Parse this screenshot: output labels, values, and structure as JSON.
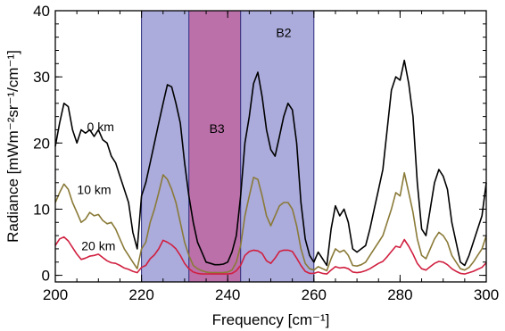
{
  "chart_data": {
    "type": "line",
    "title": "",
    "xlabel": "Frequency [cm⁻¹]",
    "ylabel": "Radiance [mWm⁻²sr⁻¹/cm⁻¹]",
    "xlim": [
      200,
      300
    ],
    "ylim": [
      -1,
      40
    ],
    "x_ticks": [
      "200",
      "220",
      "240",
      "260",
      "280",
      "300"
    ],
    "y_ticks": [
      "0",
      "10",
      "20",
      "30",
      "40"
    ],
    "grid": false,
    "legend": "none",
    "bands": [
      {
        "name": "B2",
        "x0": 220,
        "x1": 260,
        "color": "#8f8fd0"
      },
      {
        "name": "B3",
        "x0": 231,
        "x1": 243,
        "color": "#c05c98"
      }
    ],
    "series": [
      {
        "name": "0 km",
        "color": "#000000",
        "x": [
          200,
          201,
          202,
          203,
          204,
          205,
          206,
          207,
          208,
          209,
          210,
          211,
          212,
          213,
          214,
          215,
          216,
          217,
          218,
          219,
          220,
          221,
          222,
          223,
          224,
          225,
          226,
          227,
          228,
          229,
          230,
          231,
          232,
          233,
          234,
          235,
          236,
          237,
          238,
          239,
          240,
          241,
          242,
          243,
          244,
          245,
          246,
          247,
          248,
          249,
          250,
          251,
          252,
          253,
          254,
          255,
          256,
          257,
          258,
          259,
          260,
          261,
          262,
          263,
          264,
          265,
          266,
          267,
          268,
          269,
          270,
          271,
          272,
          273,
          274,
          275,
          276,
          277,
          278,
          279,
          280,
          281,
          282,
          283,
          284,
          285,
          286,
          287,
          288,
          289,
          290,
          291,
          292,
          293,
          294,
          295,
          296,
          297,
          298,
          299,
          300
        ],
        "values": [
          19.5,
          23,
          26,
          25.5,
          22,
          20,
          22,
          21.5,
          22,
          21,
          22,
          20.5,
          20,
          18,
          17,
          15,
          13,
          11,
          6.5,
          4,
          12,
          14,
          17,
          20,
          23,
          26,
          28.8,
          28.5,
          26,
          23,
          17,
          12,
          8,
          5,
          3.5,
          2,
          1.8,
          1.6,
          1.6,
          1.7,
          2,
          3.5,
          6,
          12,
          20,
          24,
          29,
          30.7,
          27,
          22,
          19,
          18,
          21,
          24,
          26,
          25,
          20,
          11,
          5.5,
          3,
          2,
          3.5,
          2.5,
          1.5,
          7,
          10.5,
          9,
          10,
          8,
          4,
          3.5,
          4,
          4.5,
          7,
          10,
          13,
          16,
          22,
          28,
          30,
          29.5,
          32.5,
          29,
          24,
          14,
          7,
          6,
          10,
          14,
          16,
          15,
          13,
          8,
          5,
          2,
          1.5,
          3,
          5,
          7,
          9,
          14
        ]
      },
      {
        "name": "10 km",
        "color": "#8a7a38",
        "x": [
          200,
          201,
          202,
          203,
          204,
          205,
          206,
          207,
          208,
          209,
          210,
          211,
          212,
          213,
          214,
          215,
          216,
          217,
          218,
          219,
          220,
          221,
          222,
          223,
          224,
          225,
          226,
          227,
          228,
          229,
          230,
          231,
          232,
          233,
          234,
          235,
          236,
          237,
          238,
          239,
          240,
          241,
          242,
          243,
          244,
          245,
          246,
          247,
          248,
          249,
          250,
          251,
          252,
          253,
          254,
          255,
          256,
          257,
          258,
          259,
          260,
          261,
          262,
          263,
          264,
          265,
          266,
          267,
          268,
          269,
          270,
          271,
          272,
          273,
          274,
          275,
          276,
          277,
          278,
          279,
          280,
          281,
          282,
          283,
          284,
          285,
          286,
          287,
          288,
          289,
          290,
          291,
          292,
          293,
          294,
          295,
          296,
          297,
          298,
          299,
          300
        ],
        "values": [
          11,
          12.5,
          13.8,
          13,
          11,
          9.5,
          8,
          8.5,
          9.5,
          9,
          9.2,
          8.3,
          7.8,
          8,
          7,
          5.5,
          4,
          3,
          2,
          1,
          4,
          5,
          8,
          10,
          12.5,
          15.2,
          14.5,
          13,
          11,
          8,
          5,
          3,
          1.5,
          1,
          0.7,
          0.5,
          0.4,
          0.4,
          0.4,
          0.4,
          0.5,
          0.8,
          2,
          4.5,
          9,
          12,
          14.8,
          14.5,
          12,
          9,
          7.5,
          9,
          10.5,
          11,
          11,
          10,
          7.5,
          4,
          1.8,
          1,
          0.8,
          1.3,
          1,
          0.7,
          2.5,
          4,
          3.5,
          3.8,
          3,
          1.5,
          1.4,
          1.6,
          2,
          3,
          4,
          5,
          6,
          8,
          10,
          12.5,
          12,
          15.5,
          12.5,
          9.5,
          5.5,
          3,
          2.5,
          4,
          5.5,
          6.5,
          6,
          5,
          3,
          2,
          1,
          0.8,
          1.2,
          2,
          3,
          4,
          6
        ]
      },
      {
        "name": "20 km",
        "color": "#d02040",
        "x": [
          200,
          201,
          202,
          203,
          204,
          205,
          206,
          207,
          208,
          209,
          210,
          211,
          212,
          213,
          214,
          215,
          216,
          217,
          218,
          219,
          220,
          221,
          222,
          223,
          224,
          225,
          226,
          227,
          228,
          229,
          230,
          231,
          232,
          233,
          234,
          235,
          236,
          237,
          238,
          239,
          240,
          241,
          242,
          243,
          244,
          245,
          246,
          247,
          248,
          249,
          250,
          251,
          252,
          253,
          254,
          255,
          256,
          257,
          258,
          259,
          260,
          261,
          262,
          263,
          264,
          265,
          266,
          267,
          268,
          269,
          270,
          271,
          272,
          273,
          274,
          275,
          276,
          277,
          278,
          279,
          280,
          281,
          282,
          283,
          284,
          285,
          286,
          287,
          288,
          289,
          290,
          291,
          292,
          293,
          294,
          295,
          296,
          297,
          298,
          299,
          300
        ],
        "values": [
          4.5,
          5.5,
          5.8,
          5.2,
          4.2,
          3.2,
          2.4,
          2.6,
          2.9,
          3,
          3.2,
          2.7,
          2.2,
          1.9,
          1.8,
          1.5,
          1.1,
          0.9,
          0.6,
          0.4,
          1.2,
          1.5,
          2.5,
          3.1,
          4,
          5.3,
          5,
          4.6,
          4,
          3,
          1.8,
          1,
          0.5,
          0.3,
          0.2,
          0.2,
          0.2,
          0.2,
          0.2,
          0.2,
          0.2,
          0.3,
          0.7,
          1.5,
          3,
          3.6,
          3.8,
          3.7,
          3.3,
          2.2,
          1.8,
          2.6,
          3.6,
          3.8,
          3.8,
          3.6,
          2.6,
          1.5,
          0.6,
          0.3,
          0.3,
          0.5,
          0.3,
          0.2,
          0.8,
          1.3,
          1.1,
          1.2,
          1,
          0.5,
          0.4,
          0.5,
          0.7,
          1,
          1.4,
          1.8,
          2.1,
          2.8,
          3.6,
          4.4,
          4.2,
          5.4,
          4.4,
          3.2,
          1.8,
          1,
          0.8,
          1.3,
          1.8,
          2.1,
          2,
          1.6,
          1,
          0.6,
          0.3,
          0.2,
          0.4,
          0.6,
          0.9,
          1.2,
          1.9
        ]
      }
    ],
    "annotations": [
      {
        "text": "0 km",
        "x": 210.5,
        "y": 21.8
      },
      {
        "text": "10 km",
        "x": 209,
        "y": 12.3
      },
      {
        "text": "20 km",
        "x": 210,
        "y": 3.8
      },
      {
        "text": "B3",
        "x": 237.5,
        "y": 21.5
      },
      {
        "text": "B2",
        "x": 253,
        "y": 36
      }
    ]
  }
}
